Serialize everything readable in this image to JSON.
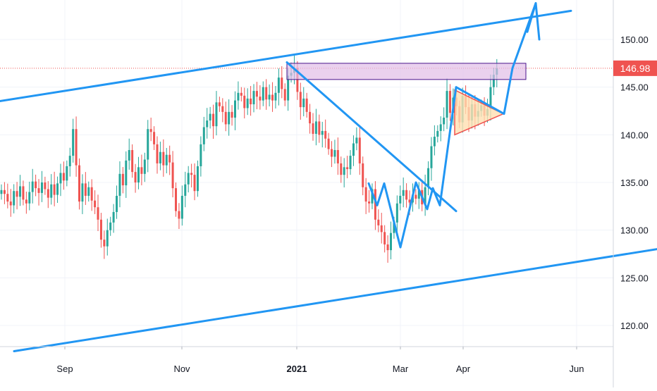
{
  "chart_data": {
    "type": "candlestick",
    "y_axis": {
      "ticks": [
        120,
        125,
        130,
        135,
        140,
        145,
        150
      ],
      "tick_labels": [
        "120.00",
        "125.00",
        "130.00",
        "135.00",
        "140.00",
        "145.00",
        "150.00"
      ],
      "position": "right"
    },
    "x_axis": {
      "tick_labels": [
        "Sep",
        "Nov",
        "2021",
        "Mar",
        "Apr",
        "Jun"
      ],
      "tick_dates": [
        "2020-09-01",
        "2020-11-01",
        "2021-01-01",
        "2021-03-01",
        "2021-04-01",
        "2021-06-01"
      ]
    },
    "last_price": {
      "value": 146.98,
      "label": "146.98"
    },
    "colors": {
      "up": "#26a69a",
      "down": "#ef5350",
      "drawing": "#2196f3",
      "grid": "#f0f3fa",
      "price_line": "#ef5350",
      "zone_fill": "#e1bee7",
      "zone_border": "#4a148c",
      "triangle_fill": "#ffe0b2",
      "triangle_border": "#ef5350"
    },
    "grid": true,
    "candles_close": [
      134.2,
      133.8,
      133.0,
      132.6,
      134.1,
      133.5,
      134.6,
      133.2,
      132.8,
      134.0,
      135.1,
      134.4,
      133.9,
      135.0,
      134.3,
      133.4,
      134.8,
      133.7,
      134.9,
      136.0,
      135.2,
      136.7,
      137.8,
      140.6,
      136.8,
      133.0,
      134.9,
      133.6,
      134.5,
      133.1,
      132.4,
      131.1,
      129.0,
      128.3,
      130.0,
      130.8,
      131.9,
      133.6,
      135.9,
      134.7,
      137.3,
      138.4,
      136.1,
      135.0,
      136.6,
      135.9,
      137.4,
      140.6,
      140.3,
      139.0,
      137.0,
      138.2,
      136.8,
      137.9,
      137.1,
      134.4,
      132.0,
      131.2,
      133.6,
      134.8,
      136.0,
      135.8,
      134.1,
      136.7,
      139.0,
      140.8,
      141.5,
      142.2,
      140.9,
      143.4,
      143.0,
      142.4,
      141.1,
      142.4,
      141.8,
      143.6,
      144.4,
      144.1,
      142.8,
      143.8,
      143.2,
      144.6,
      144.0,
      143.6,
      145.0,
      143.7,
      144.2,
      143.6,
      144.4,
      146.0,
      144.8,
      143.6,
      146.2,
      146.5,
      147.0,
      144.5,
      142.9,
      143.8,
      142.4,
      141.2,
      140.1,
      141.4,
      140.0,
      140.4,
      139.6,
      138.5,
      137.7,
      138.4,
      137.0,
      135.8,
      136.6,
      136.4,
      137.8,
      139.1,
      139.7,
      137.0,
      134.5,
      133.0,
      132.8,
      134.3,
      131.1,
      130.5,
      129.8,
      128.5,
      127.9,
      129.7,
      130.8,
      132.8,
      133.6,
      134.2,
      133.2,
      132.9,
      133.7,
      133.3,
      134.2,
      132.7,
      134.5,
      136.5,
      138.8,
      139.8,
      140.4,
      141.1,
      141.8,
      144.6,
      142.3,
      143.9,
      143.0,
      141.3,
      144.1,
      142.9,
      141.5,
      143.2,
      141.9,
      142.5,
      143.1,
      142.0,
      142.7,
      145.0,
      146.3,
      146.98
    ]
  },
  "annotations": {
    "channel_upper": [
      [
        -20,
        143.3
      ],
      [
        810,
        153.0
      ]
    ],
    "channel_lower": [
      [
        20,
        117.3
      ],
      [
        940,
        128.1
      ]
    ],
    "trendline_down": [
      [
        407,
        147.6
      ],
      [
        647,
        132.0
      ]
    ],
    "pattern_path": [
      [
        523,
        134.9
      ],
      [
        535,
        132.6
      ],
      [
        545,
        134.9
      ],
      [
        568,
        128.2
      ],
      [
        590,
        135.0
      ],
      [
        606,
        132.2
      ],
      [
        614,
        134.4
      ],
      [
        624,
        132.6
      ],
      [
        647,
        145.0
      ],
      [
        715,
        142.2
      ],
      [
        727,
        147.0
      ],
      [
        760,
        153.8
      ]
    ],
    "arrow_head": [
      [
        748,
        150.8
      ],
      [
        760,
        153.8
      ],
      [
        765,
        150.0
      ]
    ],
    "triangle": [
      [
        645,
        144.7
      ],
      [
        714,
        142.2
      ],
      [
        645,
        140.0
      ]
    ],
    "zone": {
      "x_start": 407,
      "x_end": 746,
      "y_top": 147.5,
      "y_bottom": 145.8
    }
  }
}
